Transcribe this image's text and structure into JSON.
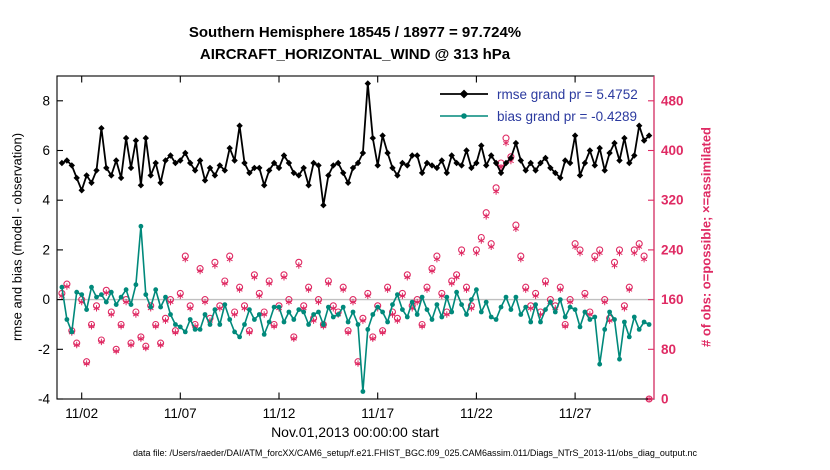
{
  "footer": {
    "text": "data file: /Users/raeder/DAI/ATM_forcXX/CAM6_setup/f.e21.FHIST_BGC.f09_025.CAM6assim.011/Diags_NTrS_2013-11/obs_diag_output.nc"
  },
  "chart_data": {
    "type": "line+scatter",
    "title": "Southern Hemisphere 18545 / 18977 = 97.724%",
    "subtitle": "AIRCRAFT_HORIZONTAL_WIND @ 313 hPa",
    "xlabel": "Nov.01,2013 00:00:00 start",
    "ylabel_left": "rmse and bias (model - observation)",
    "ylabel_right": "# of obs: o=possible; ×=assimilated",
    "xlim": [
      0.75,
      31.0
    ],
    "ylim_left": [
      -4,
      9
    ],
    "ylim_right": [
      0,
      520
    ],
    "left_ticks": [
      -4,
      -2,
      0,
      2,
      4,
      6,
      8
    ],
    "right_ticks": [
      0,
      80,
      160,
      240,
      320,
      400,
      480
    ],
    "x_ticks": [
      {
        "day": 2,
        "label": "11/02"
      },
      {
        "day": 7,
        "label": "11/07"
      },
      {
        "day": 12,
        "label": "11/12"
      },
      {
        "day": 17,
        "label": "11/17"
      },
      {
        "day": 22,
        "label": "11/22"
      },
      {
        "day": 27,
        "label": "11/27"
      }
    ],
    "t_start": 1.0,
    "t_step": 0.25,
    "colors": {
      "rmse": "#000000",
      "bias": "#00897b",
      "obs": "#df2a63",
      "zero_line": "#c0c0c0",
      "legend_text": "#2b3a9f"
    },
    "grid": false,
    "legend_position": "top-right-inside",
    "draw_order": [
      2,
      3,
      1,
      0
    ],
    "series": [
      {
        "name": "rmse grand pr = 5.4752",
        "color": "#000000",
        "marker": "diamond",
        "axis": "left",
        "line": true,
        "width": 1.8,
        "values": [
          5.5,
          5.6,
          5.4,
          4.9,
          4.4,
          5.0,
          4.7,
          5.2,
          6.9,
          5.3,
          5.0,
          5.6,
          4.9,
          6.5,
          5.3,
          6.4,
          4.6,
          6.5,
          5.0,
          5.5,
          4.7,
          5.6,
          5.8,
          5.5,
          5.6,
          5.9,
          5.5,
          5.2,
          5.6,
          4.8,
          5.3,
          5.0,
          5.4,
          5.2,
          6.1,
          5.6,
          7.0,
          5.5,
          5.1,
          5.3,
          5.3,
          4.6,
          5.2,
          5.5,
          5.3,
          5.8,
          5.5,
          5.1,
          5.0,
          5.3,
          4.6,
          5.5,
          5.4,
          3.8,
          5.0,
          5.4,
          5.5,
          5.1,
          4.7,
          5.3,
          5.5,
          5.9,
          8.7,
          6.5,
          5.4,
          6.6,
          5.9,
          5.3,
          5.0,
          5.5,
          5.4,
          5.8,
          5.8,
          5.1,
          5.5,
          5.4,
          5.3,
          5.6,
          5.1,
          5.8,
          5.5,
          5.4,
          6.0,
          5.3,
          5.5,
          6.2,
          5.4,
          5.8,
          5.5,
          5.1,
          5.5,
          5.7,
          6.3,
          5.6,
          5.2,
          5.5,
          5.2,
          5.5,
          5.7,
          5.3,
          5.1,
          4.9,
          5.6,
          5.5,
          6.6,
          5.0,
          5.5,
          6.0,
          5.4,
          6.1,
          5.2,
          5.9,
          6.3,
          5.6,
          6.5,
          5.5,
          5.8,
          7.0,
          6.4,
          6.6
        ]
      },
      {
        "name": "bias grand pr = -0.4289",
        "color": "#00897b",
        "marker": "circle-filled",
        "axis": "left",
        "line": true,
        "width": 1.6,
        "values": [
          0.5,
          -0.8,
          -1.3,
          0.3,
          0.2,
          -0.4,
          0.5,
          0.1,
          0.2,
          -0.1,
          0.3,
          -0.2,
          0.1,
          0.4,
          -0.2,
          0.6,
          2.95,
          0.2,
          -0.3,
          0.4,
          -0.3,
          0.1,
          -0.6,
          -1.0,
          -1.1,
          -1.3,
          -0.8,
          -1.2,
          -1.2,
          -0.6,
          -1.0,
          -0.4,
          -1.0,
          -0.2,
          -0.8,
          -1.3,
          -1.5,
          -1.0,
          -0.4,
          -0.8,
          -0.6,
          -1.4,
          -0.9,
          -0.3,
          -0.3,
          -0.9,
          -0.5,
          -0.8,
          -0.4,
          -0.5,
          -1.0,
          -0.6,
          -0.5,
          -1.0,
          -0.3,
          -0.7,
          -0.6,
          -0.3,
          -0.9,
          -0.5,
          -1.0,
          -3.7,
          -1.2,
          -0.6,
          -0.3,
          -0.5,
          -0.9,
          -0.2,
          0.2,
          -0.4,
          -0.7,
          -0.1,
          -0.6,
          0.1,
          -0.4,
          -0.8,
          -0.2,
          -0.7,
          0.1,
          -0.5,
          0.3,
          -0.2,
          -0.6,
          0.0,
          0.4,
          -0.5,
          -0.1,
          -0.7,
          -0.8,
          -0.3,
          0.1,
          -0.4,
          0.1,
          -0.6,
          -0.3,
          -0.9,
          -0.2,
          -0.9,
          -0.4,
          -0.1,
          -0.5,
          0.0,
          -0.7,
          -0.3,
          -0.4,
          -1.1,
          -0.5,
          -0.8,
          -0.7,
          -2.6,
          -1.2,
          -0.5,
          -0.8,
          -2.4,
          -0.9,
          -1.5,
          -0.7,
          -1.2,
          -0.9,
          -1.0
        ]
      },
      {
        "name": "possible",
        "color": "#df2a63",
        "marker": "circle-open",
        "axis": "right",
        "line": false,
        "values": [
          170,
          185,
          110,
          90,
          160,
          60,
          120,
          150,
          95,
          175,
          140,
          80,
          120,
          160,
          90,
          140,
          100,
          85,
          150,
          120,
          90,
          130,
          160,
          110,
          170,
          230,
          150,
          120,
          210,
          160,
          130,
          220,
          150,
          190,
          230,
          140,
          180,
          150,
          110,
          200,
          170,
          140,
          190,
          120,
          150,
          200,
          160,
          100,
          220,
          150,
          180,
          130,
          160,
          120,
          190,
          150,
          140,
          180,
          110,
          160,
          60,
          130,
          170,
          100,
          150,
          110,
          180,
          140,
          130,
          170,
          200,
          150,
          160,
          120,
          180,
          210,
          230,
          170,
          140,
          190,
          200,
          240,
          180,
          150,
          240,
          260,
          300,
          250,
          340,
          380,
          420,
          390,
          280,
          230,
          180,
          150,
          170,
          140,
          190,
          160,
          150,
          180,
          120,
          160,
          250,
          240,
          170,
          140,
          230,
          240,
          160,
          130,
          220,
          240,
          150,
          180,
          240,
          250,
          230,
          0
        ]
      },
      {
        "name": "assimilated",
        "color": "#df2a63",
        "marker": "asterisk",
        "axis": "right",
        "line": false,
        "values": [
          166,
          181,
          107,
          87,
          156,
          57,
          117,
          146,
          92,
          171,
          136,
          77,
          117,
          156,
          87,
          136,
          97,
          82,
          146,
          117,
          87,
          126,
          156,
          107,
          166,
          225,
          146,
          117,
          206,
          156,
          126,
          215,
          146,
          186,
          225,
          136,
          176,
          146,
          107,
          196,
          166,
          136,
          186,
          117,
          146,
          196,
          156,
          97,
          215,
          146,
          176,
          126,
          156,
          117,
          186,
          146,
          136,
          176,
          107,
          156,
          57,
          126,
          166,
          97,
          146,
          107,
          176,
          136,
          126,
          166,
          196,
          146,
          156,
          117,
          176,
          206,
          225,
          166,
          136,
          186,
          196,
          235,
          176,
          146,
          235,
          255,
          294,
          245,
          334,
          373,
          412,
          383,
          274,
          225,
          176,
          146,
          166,
          136,
          186,
          156,
          146,
          176,
          117,
          156,
          245,
          235,
          166,
          136,
          225,
          235,
          156,
          126,
          215,
          235,
          146,
          176,
          235,
          245,
          225,
          0
        ]
      }
    ]
  }
}
